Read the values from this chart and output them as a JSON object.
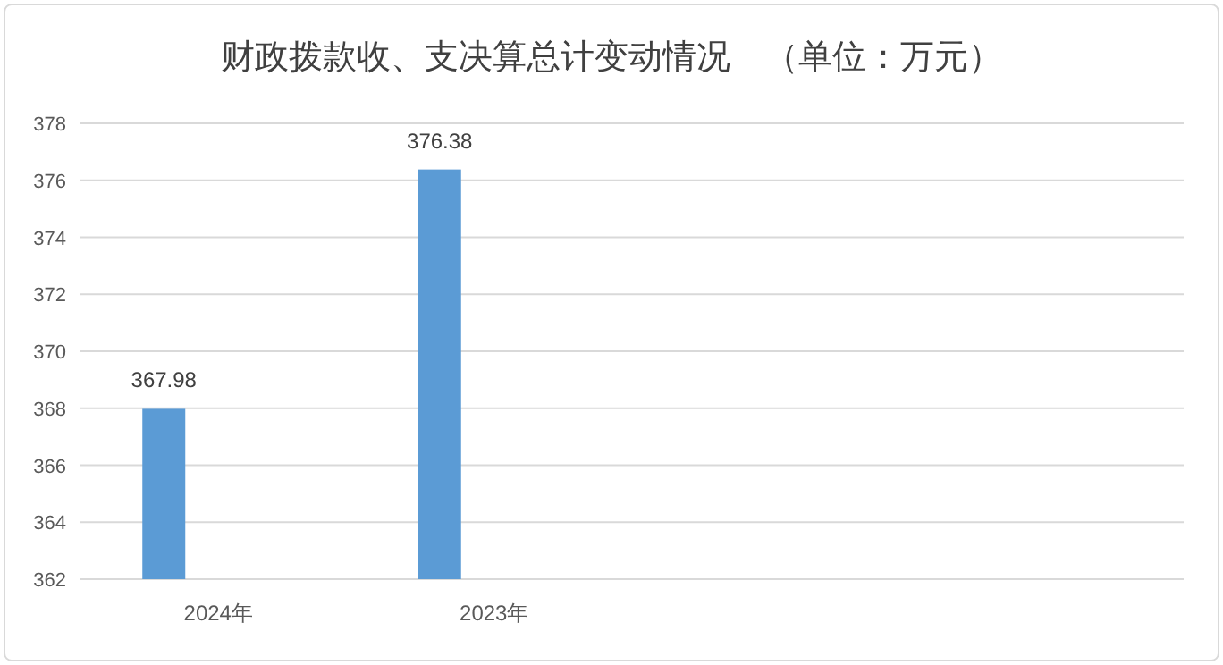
{
  "chart_data": {
    "type": "bar",
    "title": "财政拨款收、支决算总计变动情况　（单位：万元）",
    "categories": [
      "2024年",
      "2023年",
      null,
      null
    ],
    "series": [
      {
        "color": "#5b9bd5",
        "values": [
          367.98,
          376.38,
          null,
          null
        ]
      }
    ],
    "ylim": [
      362,
      378
    ],
    "yticks": [
      362,
      364,
      366,
      368,
      370,
      372,
      374,
      376,
      378
    ],
    "grid": "y",
    "data_labels": true
  }
}
